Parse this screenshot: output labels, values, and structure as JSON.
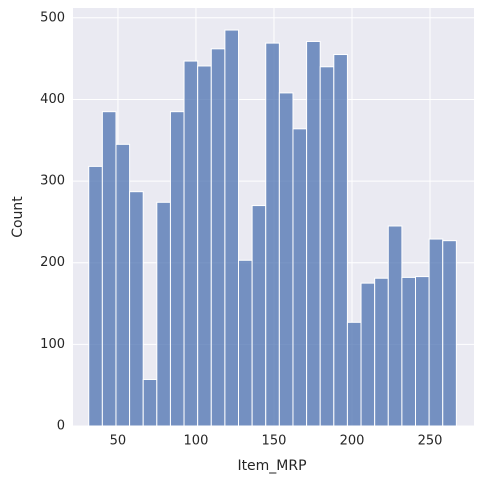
{
  "chart_data": {
    "type": "histogram",
    "xlabel": "Item_MRP",
    "ylabel": "Count",
    "bins": [
      31.29,
      40.02,
      48.74,
      57.47,
      66.19,
      74.92,
      83.65,
      92.37,
      101.1,
      109.82,
      118.55,
      127.28,
      136.0,
      144.73,
      153.45,
      162.18,
      170.91,
      179.63,
      188.36,
      197.08,
      205.81,
      214.54,
      223.26,
      231.99,
      240.71,
      249.44,
      258.17,
      266.89
    ],
    "values": [
      318,
      385,
      345,
      287,
      57,
      274,
      385,
      447,
      441,
      462,
      485,
      203,
      270,
      469,
      408,
      364,
      471,
      440,
      455,
      127,
      175,
      181,
      245,
      182,
      183,
      229,
      227
    ],
    "color": "#4c72b0",
    "xlim": [
      21.2,
      278.2
    ],
    "ylim": [
      0,
      512
    ],
    "xticks": [
      50,
      100,
      150,
      200,
      250
    ],
    "yticks": [
      0,
      100,
      200,
      300,
      400,
      500
    ],
    "grid": true
  }
}
